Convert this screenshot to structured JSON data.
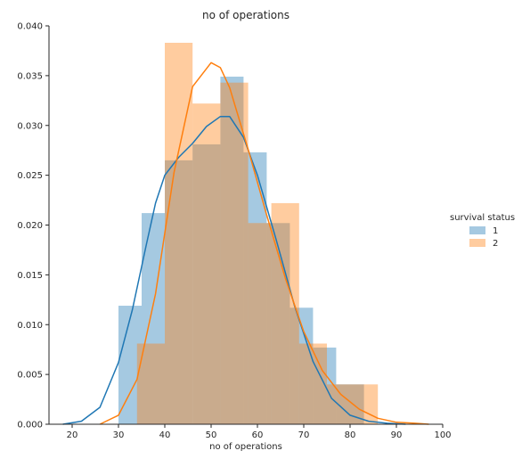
{
  "chart_data": {
    "type": "histogram",
    "title": "no of operations",
    "xlabel": "no of operations",
    "ylabel": "",
    "xlim": [
      15,
      100
    ],
    "ylim": [
      0,
      0.04
    ],
    "x_ticks": [
      "20",
      "30",
      "40",
      "50",
      "60",
      "70",
      "80",
      "90",
      "100"
    ],
    "x_tick_values": [
      20,
      30,
      40,
      50,
      60,
      70,
      80,
      90,
      100
    ],
    "y_ticks": [
      "0.000",
      "0.005",
      "0.010",
      "0.015",
      "0.020",
      "0.025",
      "0.030",
      "0.035",
      "0.040"
    ],
    "y_tick_values": [
      0,
      0.005,
      0.01,
      0.015,
      0.02,
      0.025,
      0.03,
      0.035,
      0.04
    ],
    "grid": false,
    "legend": {
      "title": "survival status",
      "placement": "right"
    },
    "series": [
      {
        "name": "1",
        "color": "#1f77b4",
        "bins": [
          {
            "x0": 30,
            "x1": 35,
            "density": 0.0119
          },
          {
            "x0": 35,
            "x1": 40,
            "density": 0.0212
          },
          {
            "x0": 40,
            "x1": 46,
            "density": 0.0265
          },
          {
            "x0": 46,
            "x1": 52,
            "density": 0.0281
          },
          {
            "x0": 52,
            "x1": 57,
            "density": 0.0349
          },
          {
            "x0": 57,
            "x1": 62,
            "density": 0.0273
          },
          {
            "x0": 62,
            "x1": 67,
            "density": 0.0202
          },
          {
            "x0": 67,
            "x1": 72,
            "density": 0.0117
          },
          {
            "x0": 72,
            "x1": 77,
            "density": 0.0077
          },
          {
            "x0": 77,
            "x1": 83,
            "density": 0.004
          }
        ],
        "kde": {
          "x": [
            18,
            22,
            26,
            30,
            33,
            36,
            38,
            40,
            43,
            46,
            49,
            52,
            54,
            57,
            60,
            64,
            68,
            72,
            76,
            80,
            84,
            88,
            92
          ],
          "y": [
            0.0,
            0.0003,
            0.0017,
            0.0062,
            0.0115,
            0.018,
            0.0222,
            0.025,
            0.0268,
            0.0282,
            0.0299,
            0.0309,
            0.0309,
            0.0288,
            0.025,
            0.0186,
            0.0119,
            0.0063,
            0.0026,
            0.0009,
            0.0003,
            0.0001,
            0.0
          ]
        }
      },
      {
        "name": "2",
        "color": "#ff7f0e",
        "bins": [
          {
            "x0": 34,
            "x1": 40,
            "density": 0.0081
          },
          {
            "x0": 40,
            "x1": 46,
            "density": 0.0383
          },
          {
            "x0": 46,
            "x1": 52,
            "density": 0.0322
          },
          {
            "x0": 52,
            "x1": 58,
            "density": 0.0343
          },
          {
            "x0": 58,
            "x1": 63,
            "density": 0.0202
          },
          {
            "x0": 63,
            "x1": 69,
            "density": 0.0222
          },
          {
            "x0": 69,
            "x1": 75,
            "density": 0.0081
          },
          {
            "x0": 75,
            "x1": 80,
            "density": 0.004
          },
          {
            "x0": 80,
            "x1": 86,
            "density": 0.004
          }
        ],
        "kde": {
          "x": [
            26,
            30,
            34,
            38,
            42,
            46,
            50,
            52,
            54,
            58,
            62,
            66,
            70,
            74,
            78,
            82,
            86,
            90,
            94,
            97
          ],
          "y": [
            0.0,
            0.0009,
            0.0045,
            0.0131,
            0.0253,
            0.0339,
            0.0363,
            0.0358,
            0.0338,
            0.0276,
            0.021,
            0.0147,
            0.0093,
            0.0054,
            0.003,
            0.0015,
            0.0006,
            0.0002,
            0.0001,
            0.0
          ]
        }
      }
    ]
  }
}
